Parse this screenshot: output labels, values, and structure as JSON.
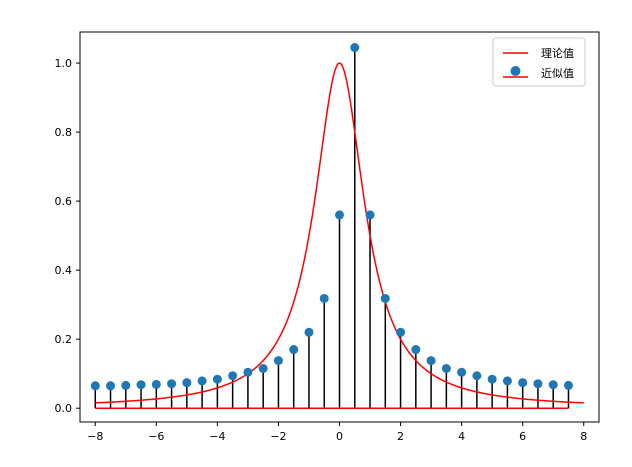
{
  "chart_data": {
    "type": "line",
    "xlim": [
      -8.5,
      8.5
    ],
    "ylim": [
      -0.04,
      1.09
    ],
    "xticks": [
      -8,
      -6,
      -4,
      -2,
      0,
      2,
      4,
      6,
      8
    ],
    "xtick_labels": [
      "−8",
      "−6",
      "−4",
      "−2",
      "0",
      "2",
      "4",
      "6",
      "8"
    ],
    "yticks": [
      0.0,
      0.2,
      0.4,
      0.6,
      0.8,
      1.0
    ],
    "ytick_labels": [
      "0.0",
      "0.2",
      "0.4",
      "0.6",
      "0.8",
      "1.0"
    ],
    "grid": false,
    "legend_position": "top-right",
    "series": [
      {
        "name": "理论值",
        "kind": "line",
        "color": "#ff0000",
        "function": "1/(1+x^2)",
        "x_range": [
          -8,
          8
        ]
      },
      {
        "name": "近似值",
        "kind": "stem",
        "marker_color": "#1f77b4",
        "stem_color": "#000000",
        "baseline_color": "#ff0000",
        "x": [
          -8,
          -7.5,
          -7,
          -6.5,
          -6,
          -5.5,
          -5,
          -4.5,
          -4,
          -3.5,
          -3,
          -2.5,
          -2,
          -1.5,
          -1,
          -0.5,
          0,
          0.5,
          1,
          1.5,
          2,
          2.5,
          3,
          3.5,
          4,
          4.5,
          5,
          5.5,
          6,
          6.5,
          7,
          7.5
        ],
        "y": [
          0.065,
          0.065,
          0.066,
          0.068,
          0.069,
          0.071,
          0.074,
          0.079,
          0.084,
          0.094,
          0.104,
          0.115,
          0.138,
          0.17,
          0.22,
          0.318,
          0.56,
          1.045,
          0.56,
          0.318,
          0.22,
          0.17,
          0.138,
          0.115,
          0.104,
          0.094,
          0.084,
          0.079,
          0.074,
          0.071,
          0.068,
          0.066
        ]
      }
    ]
  }
}
